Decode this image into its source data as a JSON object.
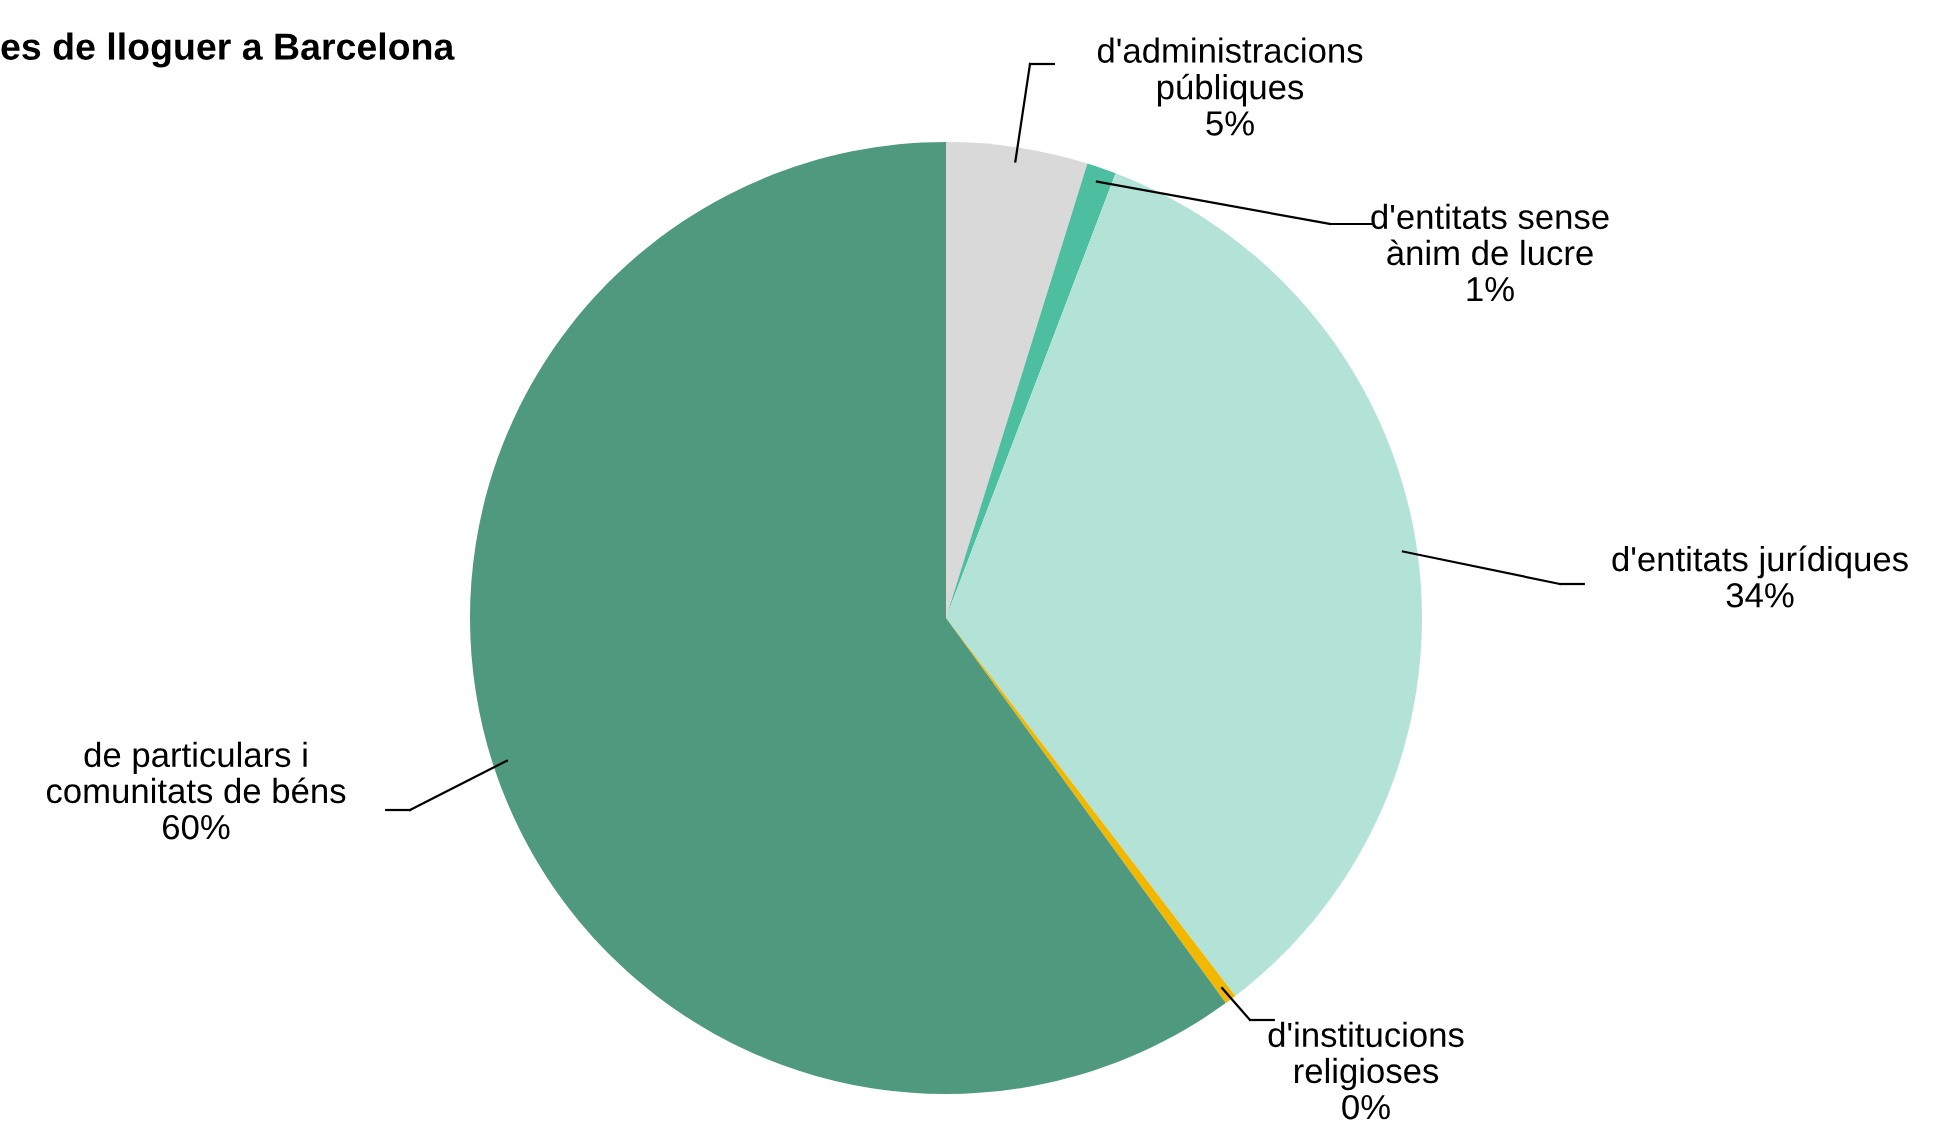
{
  "chart_data": {
    "type": "pie",
    "title": "es de lloguer a Barcelona",
    "categories": [
      "d'administracions\npúbliques",
      "d'entitats sense\nànim de lucre",
      "d'entitats jurídiques",
      "d'institucions\nreligioses",
      "de particulars i\ncomunitats de béns"
    ],
    "values": [
      4.8,
      1.0,
      33.8,
      0.4,
      60.0
    ],
    "value_labels": [
      "5%",
      "1%",
      "34%",
      "0%",
      "60%"
    ],
    "colors": [
      "#d9d9d9",
      "#4dbfa0",
      "#b3e2d6",
      "#f2b800",
      "#4f9a7e"
    ]
  }
}
